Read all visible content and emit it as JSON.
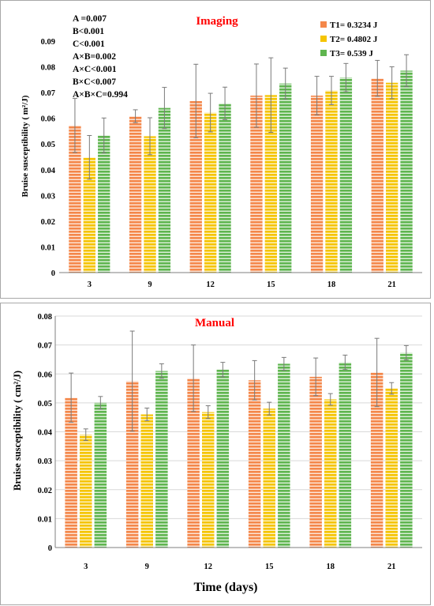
{
  "colors": {
    "T1": "#f4874a",
    "T2": "#f5c400",
    "T3": "#5fb54f",
    "title": "#ff0000",
    "error_bar": "#7a7a7a"
  },
  "chart_data": [
    {
      "type": "bar",
      "title": "Imaging",
      "xlabel": "",
      "ylabel": "Bruise susceptibility ( m²/J)",
      "categories": [
        "3",
        "9",
        "12",
        "15",
        "18",
        "21"
      ],
      "yticks": [
        "0",
        "0.01",
        "0.02",
        "0.03",
        "0.04",
        "0.05",
        "0.06",
        "0.07",
        "0.08",
        "0.09"
      ],
      "ylim": [
        0,
        0.09
      ],
      "grid": false,
      "legend_position": "top-right",
      "stats_annotation": [
        "A =0.007",
        "B<0.001",
        "C<0.001",
        "A×B=0.002",
        "A×C<0.001",
        "B×C<0.007",
        "A×B×C=0.994"
      ],
      "series": [
        {
          "name": "T1= 0.3234 J",
          "color": "#f4874a",
          "values": [
            0.0572,
            0.0608,
            0.0667,
            0.0688,
            0.0688,
            0.0755
          ],
          "errors": [
            0.0105,
            0.0025,
            0.0143,
            0.0123,
            0.0075,
            0.007
          ]
        },
        {
          "name": "T2= 0.4802 J",
          "color": "#f5c400",
          "values": [
            0.0448,
            0.053,
            0.0622,
            0.069,
            0.0708,
            0.0738
          ],
          "errors": [
            0.0085,
            0.0072,
            0.0075,
            0.0145,
            0.0055,
            0.0062
          ]
        },
        {
          "name": "T3= 0.539 J",
          "color": "#5fb54f",
          "values": [
            0.0533,
            0.064,
            0.0658,
            0.0735,
            0.0758,
            0.0785
          ],
          "errors": [
            0.0068,
            0.008,
            0.0063,
            0.006,
            0.0055,
            0.0062
          ]
        }
      ]
    },
    {
      "type": "bar",
      "title": "Manual",
      "xlabel": "Time (days)",
      "ylabel": "Bruise susceptibility ( cm²/J)",
      "categories": [
        "3",
        "9",
        "12",
        "15",
        "18",
        "21"
      ],
      "yticks": [
        "0",
        "0.01",
        "0.02",
        "0.03",
        "0.04",
        "0.05",
        "0.06",
        "0.07",
        "0.08"
      ],
      "ylim": [
        0,
        0.08
      ],
      "grid": true,
      "series": [
        {
          "name": "T1",
          "color": "#f4874a",
          "values": [
            0.0518,
            0.0575,
            0.0585,
            0.0578,
            0.059,
            0.0605
          ],
          "errors": [
            0.0085,
            0.0173,
            0.0115,
            0.0068,
            0.0065,
            0.0118
          ]
        },
        {
          "name": "T2",
          "color": "#f5c400",
          "values": [
            0.039,
            0.046,
            0.0468,
            0.048,
            0.0512,
            0.055
          ],
          "errors": [
            0.002,
            0.0022,
            0.0022,
            0.0022,
            0.002,
            0.002
          ]
        },
        {
          "name": "T3",
          "color": "#5fb54f",
          "values": [
            0.05,
            0.061,
            0.0615,
            0.0635,
            0.064,
            0.0673
          ],
          "errors": [
            0.0022,
            0.0025,
            0.0025,
            0.0022,
            0.0025,
            0.0025
          ]
        }
      ]
    }
  ]
}
